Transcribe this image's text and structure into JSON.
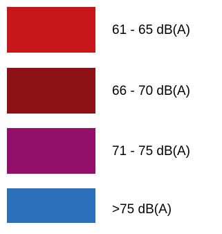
{
  "legend": {
    "items": [
      {
        "label": "61 - 65 dB(A)",
        "color": "#c8171a"
      },
      {
        "label": "66 - 70 dB(A)",
        "color": "#8c1215"
      },
      {
        "label": "71 - 75 dB(A)",
        "color": "#93106a"
      },
      {
        "label": ">75 dB(A)",
        "color": "#2c70bb"
      }
    ]
  }
}
